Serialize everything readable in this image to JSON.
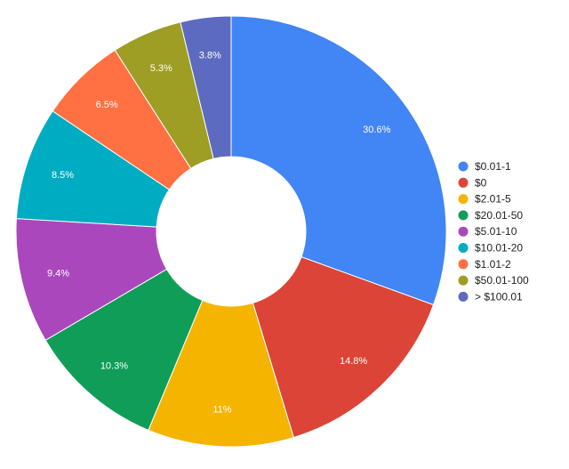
{
  "chart_data": {
    "type": "pie",
    "donut": true,
    "legend_position": "right",
    "title": "",
    "slices": [
      {
        "label": "$0.01-1",
        "value": 30.6,
        "display": "30.6%",
        "color": "#4285F4"
      },
      {
        "label": "$0",
        "value": 14.8,
        "display": "14.8%",
        "color": "#DB4437"
      },
      {
        "label": "$2.01-5",
        "value": 11,
        "display": "11%",
        "color": "#F4B400"
      },
      {
        "label": "$20.01-50",
        "value": 10.3,
        "display": "10.3%",
        "color": "#0F9D58"
      },
      {
        "label": "$5.01-10",
        "value": 9.4,
        "display": "9.4%",
        "color": "#AB47BC"
      },
      {
        "label": "$10.01-20",
        "value": 8.5,
        "display": "8.5%",
        "color": "#00ACC1"
      },
      {
        "label": "$1.01-2",
        "value": 6.5,
        "display": "6.5%",
        "color": "#FF7043"
      },
      {
        "label": "$50.01-100",
        "value": 5.3,
        "display": "5.3%",
        "color": "#9E9D24"
      },
      {
        "label": "> $100.01",
        "value": 3.8,
        "display": "3.8%",
        "color": "#5C6BC0"
      }
    ]
  }
}
